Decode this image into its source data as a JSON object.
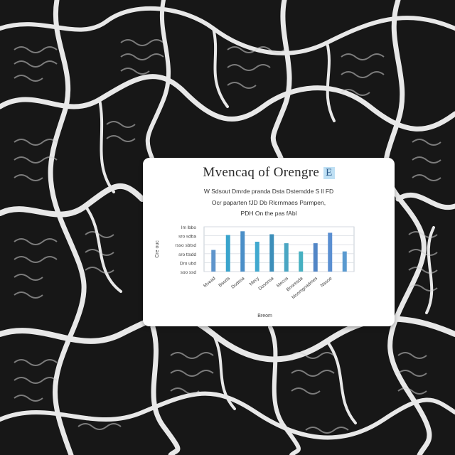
{
  "card": {
    "title": "Mvencaq of Orengre",
    "title_badge": "E",
    "subtitle_lines": [
      "W Sdsout Dmrde pranda Dsta Dstemdde S ll FD",
      "Ocr paparten fJD Db Rlcrnmaes Parmpen,",
      "PDH On the pas fAbl"
    ]
  },
  "chart_data": {
    "type": "bar",
    "title": "Mvencaq of Orengre",
    "categories": [
      "Mvead",
      "Bsorts",
      "Dodssa",
      "Mecy",
      "Dosonsa",
      "Mecos",
      "Bnoresda",
      "Mnomgnadmes",
      "Nsooe",
      ""
    ],
    "values": [
      29,
      49,
      54,
      40,
      50,
      38,
      27,
      38,
      52,
      27
    ],
    "ylim": [
      0,
      60
    ],
    "yticks": [
      "lm lbbo",
      "sro sdba",
      "rsso sbtsd",
      "sro ttsdd",
      "Dro ubd",
      "soo ssd"
    ],
    "ylabel": "Cre ouc",
    "xlabel": "Breom",
    "grid": true,
    "bar_colors": [
      "#5f95cc",
      "#3aa4cc",
      "#4b8fc8",
      "#41a9cf",
      "#3d8fba",
      "#4aa6c3",
      "#46b0c1",
      "#5286c6",
      "#5a8fd1",
      "#5a9ad0"
    ]
  }
}
